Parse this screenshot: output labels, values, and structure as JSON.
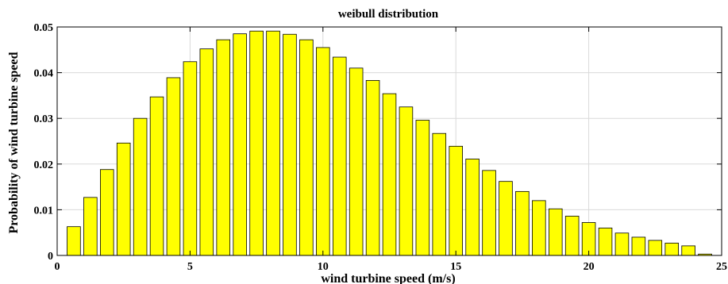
{
  "chart_data": {
    "type": "bar",
    "title": "weibull distribution",
    "xlabel": "wind turbine speed (m/s)",
    "ylabel": "Probability of wind turbine speed",
    "xlim": [
      0,
      25
    ],
    "ylim": [
      0,
      0.05
    ],
    "x_ticks": [
      0,
      5,
      10,
      15,
      20,
      25
    ],
    "y_ticks": [
      0,
      0.01,
      0.02,
      0.03,
      0.04,
      0.05
    ],
    "x_tick_labels": [
      "0",
      "5",
      "10",
      "15",
      "20",
      "25"
    ],
    "y_tick_labels": [
      "0",
      "0.01",
      "0.02",
      "0.03",
      "0.04",
      "0.05"
    ],
    "grid": true,
    "bar_width": 0.5,
    "bar_color": "#ffff00",
    "bar_edge_color": "#000000",
    "x": [
      0.625,
      1.25,
      1.875,
      2.5,
      3.125,
      3.75,
      4.375,
      5.0,
      5.625,
      6.25,
      6.875,
      7.5,
      8.125,
      8.75,
      9.375,
      10.0,
      10.625,
      11.25,
      11.875,
      12.5,
      13.125,
      13.75,
      14.375,
      15.0,
      15.625,
      16.25,
      16.875,
      17.5,
      18.125,
      18.75,
      19.375,
      20.0,
      20.625,
      21.25,
      21.875,
      22.5,
      23.125,
      23.75,
      24.375
    ],
    "values": [
      0.0063,
      0.0127,
      0.0188,
      0.0246,
      0.03,
      0.0347,
      0.0389,
      0.0424,
      0.0452,
      0.0472,
      0.0485,
      0.0491,
      0.0491,
      0.0484,
      0.0472,
      0.0455,
      0.0434,
      0.041,
      0.0383,
      0.0354,
      0.0325,
      0.0296,
      0.0267,
      0.0239,
      0.0211,
      0.0186,
      0.0162,
      0.014,
      0.012,
      0.0102,
      0.0086,
      0.0072,
      0.006,
      0.0049,
      0.004,
      0.0033,
      0.0027,
      0.0021,
      0.0003
    ]
  }
}
